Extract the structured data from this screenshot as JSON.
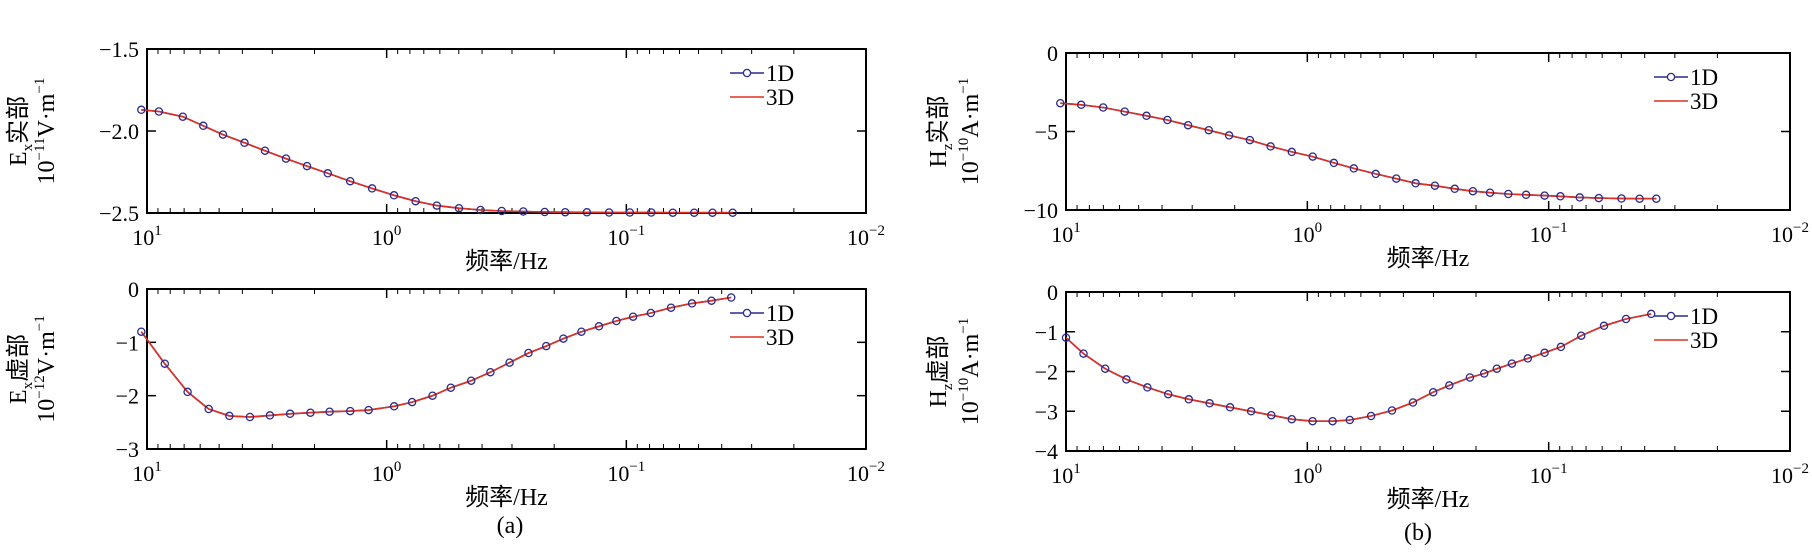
{
  "figure": {
    "panel_a_caption": "(a)",
    "panel_b_caption": "(b)"
  },
  "chart_data": [
    {
      "id": "a_real",
      "type": "line",
      "xscale": "log-reversed",
      "xlim": [
        10,
        0.01
      ],
      "xticks": [
        {
          "v": 10,
          "base": "10",
          "exp": "1"
        },
        {
          "v": 1,
          "base": "10",
          "exp": "0"
        },
        {
          "v": 0.1,
          "base": "10",
          "exp": "−1"
        },
        {
          "v": 0.01,
          "base": "10",
          "exp": "−2"
        }
      ],
      "ylim": [
        -2.5,
        -1.5
      ],
      "yticks": [
        -1.5,
        -2.0,
        -2.5
      ],
      "ytick_labels": [
        "−1.5",
        "−2.0",
        "−2.5"
      ],
      "xlabel": "频率/Hz",
      "ylabel_line1": {
        "pre": "E",
        "sub": "x",
        "post": "实部"
      },
      "ylabel_line2": {
        "pre": "10",
        "sup": "−11",
        "post": "V·m",
        "sup2": "−1"
      },
      "legend": {
        "position": "top-right",
        "entries": [
          "1D",
          "3D"
        ]
      },
      "series": [
        {
          "name": "1D",
          "marker": "circle",
          "color": "#2b2b8c",
          "x": [
            10.56,
            8.92,
            7.09,
            5.82,
            4.82,
            3.92,
            3.22,
            2.63,
            2.15,
            1.76,
            1.42,
            1.15,
            0.932,
            0.757,
            0.618,
            0.499,
            0.406,
            0.331,
            0.269,
            0.219,
            0.18,
            0.146,
            0.118,
            0.0967,
            0.0787,
            0.064,
            0.0521,
            0.0437,
            0.036
          ],
          "y": [
            -1.871,
            -1.881,
            -1.913,
            -1.968,
            -2.022,
            -2.072,
            -2.12,
            -2.168,
            -2.214,
            -2.258,
            -2.306,
            -2.35,
            -2.392,
            -2.428,
            -2.455,
            -2.471,
            -2.482,
            -2.488,
            -2.491,
            -2.494,
            -2.495,
            -2.496,
            -2.497,
            -2.497,
            -2.497,
            -2.498,
            -2.498,
            -2.498,
            -2.498
          ]
        },
        {
          "name": "3D",
          "marker": "none",
          "color": "#e03020",
          "x": [
            10.56,
            8.92,
            7.09,
            5.82,
            4.82,
            3.92,
            3.22,
            2.63,
            2.15,
            1.76,
            1.42,
            1.15,
            0.932,
            0.757,
            0.618,
            0.499,
            0.406,
            0.331,
            0.269,
            0.219,
            0.18,
            0.146,
            0.118,
            0.0967,
            0.0787,
            0.064,
            0.0521,
            0.0437,
            0.036
          ],
          "y": [
            -1.871,
            -1.881,
            -1.913,
            -1.968,
            -2.022,
            -2.072,
            -2.12,
            -2.168,
            -2.214,
            -2.258,
            -2.306,
            -2.35,
            -2.392,
            -2.428,
            -2.455,
            -2.471,
            -2.482,
            -2.488,
            -2.491,
            -2.494,
            -2.495,
            -2.496,
            -2.497,
            -2.497,
            -2.497,
            -2.498,
            -2.498,
            -2.498,
            -2.498
          ]
        }
      ]
    },
    {
      "id": "a_imag",
      "type": "line",
      "xscale": "log-reversed",
      "xlim": [
        10,
        0.01
      ],
      "xticks": [
        {
          "v": 10,
          "base": "10",
          "exp": "1"
        },
        {
          "v": 1,
          "base": "10",
          "exp": "0"
        },
        {
          "v": 0.1,
          "base": "10",
          "exp": "−1"
        },
        {
          "v": 0.01,
          "base": "10",
          "exp": "−2"
        }
      ],
      "ylim": [
        -3,
        0
      ],
      "yticks": [
        0,
        -1,
        -2,
        -3
      ],
      "ytick_labels": [
        "0",
        "−1",
        "−2",
        "−3"
      ],
      "xlabel": "频率/Hz",
      "ylabel_line1": {
        "pre": "E",
        "sub": "x",
        "post": "虚部"
      },
      "ylabel_line2": {
        "pre": "10",
        "sup": "−12",
        "post": "V·m",
        "sup2": "−1"
      },
      "legend": {
        "position": "top-right",
        "entries": [
          "1D",
          "3D"
        ]
      },
      "series": [
        {
          "name": "1D",
          "marker": "circle",
          "color": "#2b2b8c",
          "x": [
            10.56,
            8.43,
            6.77,
            5.53,
            4.53,
            3.72,
            3.07,
            2.53,
            2.08,
            1.73,
            1.42,
            1.19,
            0.931,
            0.783,
            0.644,
            0.54,
            0.444,
            0.369,
            0.307,
            0.256,
            0.216,
            0.183,
            0.154,
            0.13,
            0.11,
            0.0937,
            0.079,
            0.0651,
            0.0532,
            0.0441,
            0.0365
          ],
          "y": [
            -0.8,
            -1.4,
            -1.93,
            -2.25,
            -2.38,
            -2.4,
            -2.37,
            -2.34,
            -2.32,
            -2.3,
            -2.29,
            -2.27,
            -2.2,
            -2.12,
            -2.0,
            -1.85,
            -1.72,
            -1.56,
            -1.38,
            -1.2,
            -1.07,
            -0.93,
            -0.8,
            -0.7,
            -0.6,
            -0.52,
            -0.45,
            -0.35,
            -0.27,
            -0.22,
            -0.16
          ]
        },
        {
          "name": "3D",
          "marker": "none",
          "color": "#e03020",
          "x": [
            10.56,
            8.43,
            6.77,
            5.53,
            4.53,
            3.72,
            3.07,
            2.53,
            2.08,
            1.73,
            1.42,
            1.19,
            0.931,
            0.783,
            0.644,
            0.54,
            0.444,
            0.369,
            0.307,
            0.256,
            0.216,
            0.183,
            0.154,
            0.13,
            0.11,
            0.0937,
            0.079,
            0.0651,
            0.0532,
            0.0441,
            0.0365
          ],
          "y": [
            -0.8,
            -1.4,
            -1.93,
            -2.25,
            -2.38,
            -2.4,
            -2.37,
            -2.34,
            -2.32,
            -2.3,
            -2.29,
            -2.27,
            -2.2,
            -2.12,
            -2.0,
            -1.85,
            -1.72,
            -1.56,
            -1.38,
            -1.2,
            -1.07,
            -0.93,
            -0.8,
            -0.7,
            -0.6,
            -0.52,
            -0.45,
            -0.35,
            -0.27,
            -0.22,
            -0.16
          ]
        }
      ]
    },
    {
      "id": "b_real",
      "type": "line",
      "xscale": "log-reversed",
      "xlim": [
        10,
        0.01
      ],
      "xticks": [
        {
          "v": 10,
          "base": "10",
          "exp": "1"
        },
        {
          "v": 1,
          "base": "10",
          "exp": "0"
        },
        {
          "v": 0.1,
          "base": "10",
          "exp": "−1"
        },
        {
          "v": 0.01,
          "base": "10",
          "exp": "−2"
        }
      ],
      "ylim": [
        -10,
        0
      ],
      "yticks": [
        0,
        -5,
        -10
      ],
      "ytick_labels": [
        "0",
        "−5",
        "−10"
      ],
      "xlabel": "频率/Hz",
      "ylabel_line1": {
        "pre": "H",
        "sub": "z",
        "post": "实部"
      },
      "ylabel_line2": {
        "pre": "10",
        "sup": "−10",
        "post": "A·m",
        "sup2": "−1"
      },
      "legend": {
        "position": "top-right",
        "entries": [
          "1D",
          "3D"
        ]
      },
      "series": [
        {
          "name": "1D",
          "marker": "circle",
          "color": "#2b2b8c",
          "x": [
            10.56,
            8.65,
            7.01,
            5.71,
            4.64,
            3.8,
            3.12,
            2.56,
            2.11,
            1.73,
            1.42,
            1.16,
            0.95,
            0.776,
            0.642,
            0.521,
            0.428,
            0.356,
            0.296,
            0.245,
            0.206,
            0.175,
            0.147,
            0.124,
            0.104,
            0.0894,
            0.0744,
            0.062,
            0.0499,
            0.042,
            0.0358
          ],
          "y": [
            -3.2,
            -3.3,
            -3.47,
            -3.73,
            -4.0,
            -4.27,
            -4.6,
            -4.92,
            -5.25,
            -5.55,
            -5.95,
            -6.3,
            -6.6,
            -7.0,
            -7.35,
            -7.7,
            -8.0,
            -8.3,
            -8.45,
            -8.65,
            -8.8,
            -8.9,
            -8.98,
            -9.03,
            -9.08,
            -9.13,
            -9.2,
            -9.24,
            -9.27,
            -9.28,
            -9.28
          ]
        },
        {
          "name": "3D",
          "marker": "none",
          "color": "#e03020",
          "x": [
            10.56,
            8.65,
            7.01,
            5.71,
            4.64,
            3.8,
            3.12,
            2.56,
            2.11,
            1.73,
            1.42,
            1.16,
            0.95,
            0.776,
            0.642,
            0.521,
            0.428,
            0.356,
            0.296,
            0.245,
            0.206,
            0.175,
            0.147,
            0.124,
            0.104,
            0.0894,
            0.0744,
            0.062,
            0.0499,
            0.042,
            0.0358
          ],
          "y": [
            -3.2,
            -3.3,
            -3.47,
            -3.73,
            -4.0,
            -4.27,
            -4.6,
            -4.92,
            -5.25,
            -5.55,
            -5.95,
            -6.3,
            -6.6,
            -7.0,
            -7.35,
            -7.7,
            -8.0,
            -8.3,
            -8.45,
            -8.65,
            -8.8,
            -8.9,
            -8.98,
            -9.03,
            -9.08,
            -9.13,
            -9.2,
            -9.24,
            -9.27,
            -9.28,
            -9.28
          ]
        }
      ]
    },
    {
      "id": "b_imag",
      "type": "line",
      "xscale": "log-reversed",
      "xlim": [
        10,
        0.01
      ],
      "xticks": [
        {
          "v": 10,
          "base": "10",
          "exp": "1"
        },
        {
          "v": 1,
          "base": "10",
          "exp": "0"
        },
        {
          "v": 0.1,
          "base": "10",
          "exp": "−1"
        },
        {
          "v": 0.01,
          "base": "10",
          "exp": "−2"
        }
      ],
      "ylim": [
        -4,
        0
      ],
      "yticks": [
        0,
        -1,
        -2,
        -3,
        -4
      ],
      "ytick_labels": [
        "0",
        "−1",
        "−2",
        "−3",
        "−4"
      ],
      "xlabel": "频率/Hz",
      "ylabel_line1": {
        "pre": "H",
        "sub": "z",
        "post": "虚部"
      },
      "ylabel_line2": {
        "pre": "10",
        "sup": "−10",
        "post": "A·m",
        "sup2": "−1"
      },
      "legend": {
        "position": "top-right",
        "entries": [
          "1D",
          "3D"
        ]
      },
      "series": [
        {
          "name": "1D",
          "marker": "circle",
          "color": "#2b2b8c",
          "x": [
            10.0,
            8.46,
            6.88,
            5.62,
            4.6,
            3.77,
            3.1,
            2.54,
            2.09,
            1.71,
            1.41,
            1.16,
            0.951,
            0.786,
            0.667,
            0.544,
            0.446,
            0.365,
            0.301,
            0.258,
            0.212,
            0.185,
            0.164,
            0.142,
            0.122,
            0.104,
            0.089,
            0.0733,
            0.059,
            0.0478,
            0.0376
          ],
          "y": [
            -1.15,
            -1.55,
            -1.93,
            -2.2,
            -2.4,
            -2.57,
            -2.7,
            -2.8,
            -2.9,
            -3.0,
            -3.1,
            -3.2,
            -3.25,
            -3.25,
            -3.22,
            -3.12,
            -2.98,
            -2.78,
            -2.52,
            -2.35,
            -2.15,
            -2.05,
            -1.93,
            -1.8,
            -1.67,
            -1.53,
            -1.38,
            -1.1,
            -0.85,
            -0.68,
            -0.55
          ]
        },
        {
          "name": "3D",
          "marker": "none",
          "color": "#e03020",
          "x": [
            10.0,
            8.46,
            6.88,
            5.62,
            4.6,
            3.77,
            3.1,
            2.54,
            2.09,
            1.71,
            1.41,
            1.16,
            0.951,
            0.786,
            0.667,
            0.544,
            0.446,
            0.365,
            0.301,
            0.258,
            0.212,
            0.185,
            0.164,
            0.142,
            0.122,
            0.104,
            0.089,
            0.0733,
            0.059,
            0.0478,
            0.0376
          ],
          "y": [
            -1.15,
            -1.55,
            -1.93,
            -2.2,
            -2.4,
            -2.57,
            -2.7,
            -2.8,
            -2.9,
            -3.0,
            -3.1,
            -3.2,
            -3.25,
            -3.25,
            -3.22,
            -3.12,
            -2.98,
            -2.78,
            -2.52,
            -2.35,
            -2.15,
            -2.05,
            -1.93,
            -1.8,
            -1.67,
            -1.53,
            -1.38,
            -1.1,
            -0.85,
            -0.68,
            -0.55
          ]
        }
      ]
    }
  ]
}
